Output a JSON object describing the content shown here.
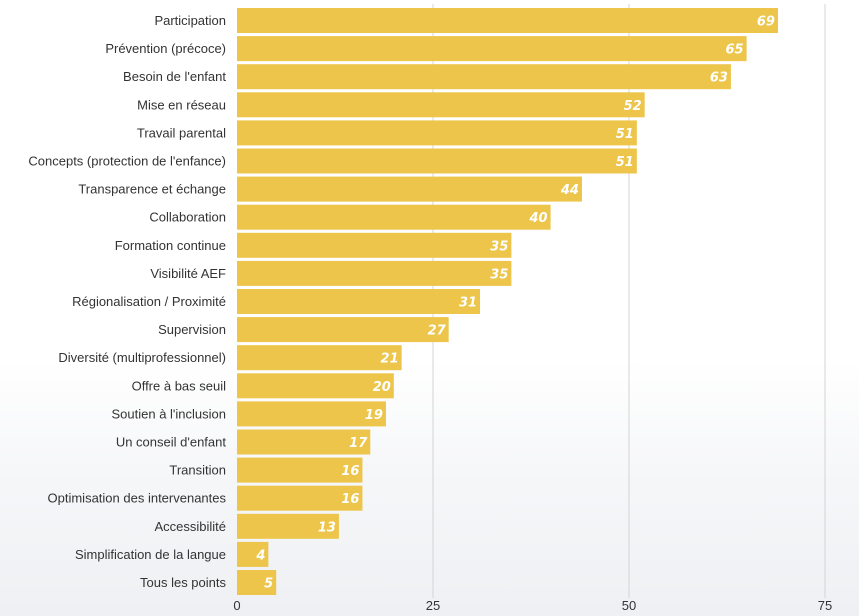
{
  "chart_data": {
    "type": "bar",
    "orientation": "horizontal",
    "categories": [
      "Participation",
      "Prévention (précoce)",
      "Besoin de l'enfant",
      "Mise en réseau",
      "Travail parental",
      "Concepts (protection de l'enfance)",
      "Transparence et échange",
      "Collaboration",
      "Formation continue",
      "Visibilité AEF",
      "Régionalisation / Proximité",
      "Supervision",
      "Diversité (multiprofessionnel)",
      "Offre à bas seuil",
      "Soutien à l'inclusion",
      "Un conseil d'enfant",
      "Transition",
      "Optimisation des intervenantes",
      "Accessibilité",
      "Simplification de la langue",
      "Tous les points"
    ],
    "values": [
      69,
      65,
      63,
      52,
      51,
      51,
      44,
      40,
      35,
      35,
      31,
      27,
      21,
      20,
      19,
      17,
      16,
      16,
      13,
      4,
      5
    ],
    "title": "",
    "xlabel": "",
    "ylabel": "",
    "xlim": [
      0,
      75
    ],
    "xticks": [
      0,
      25,
      50,
      75
    ],
    "grid": "vertical",
    "legend": "none",
    "data_labels": true,
    "bar_color": "#ecc54a",
    "grid_color": "#d4d4d4",
    "label_color": "#333333"
  }
}
